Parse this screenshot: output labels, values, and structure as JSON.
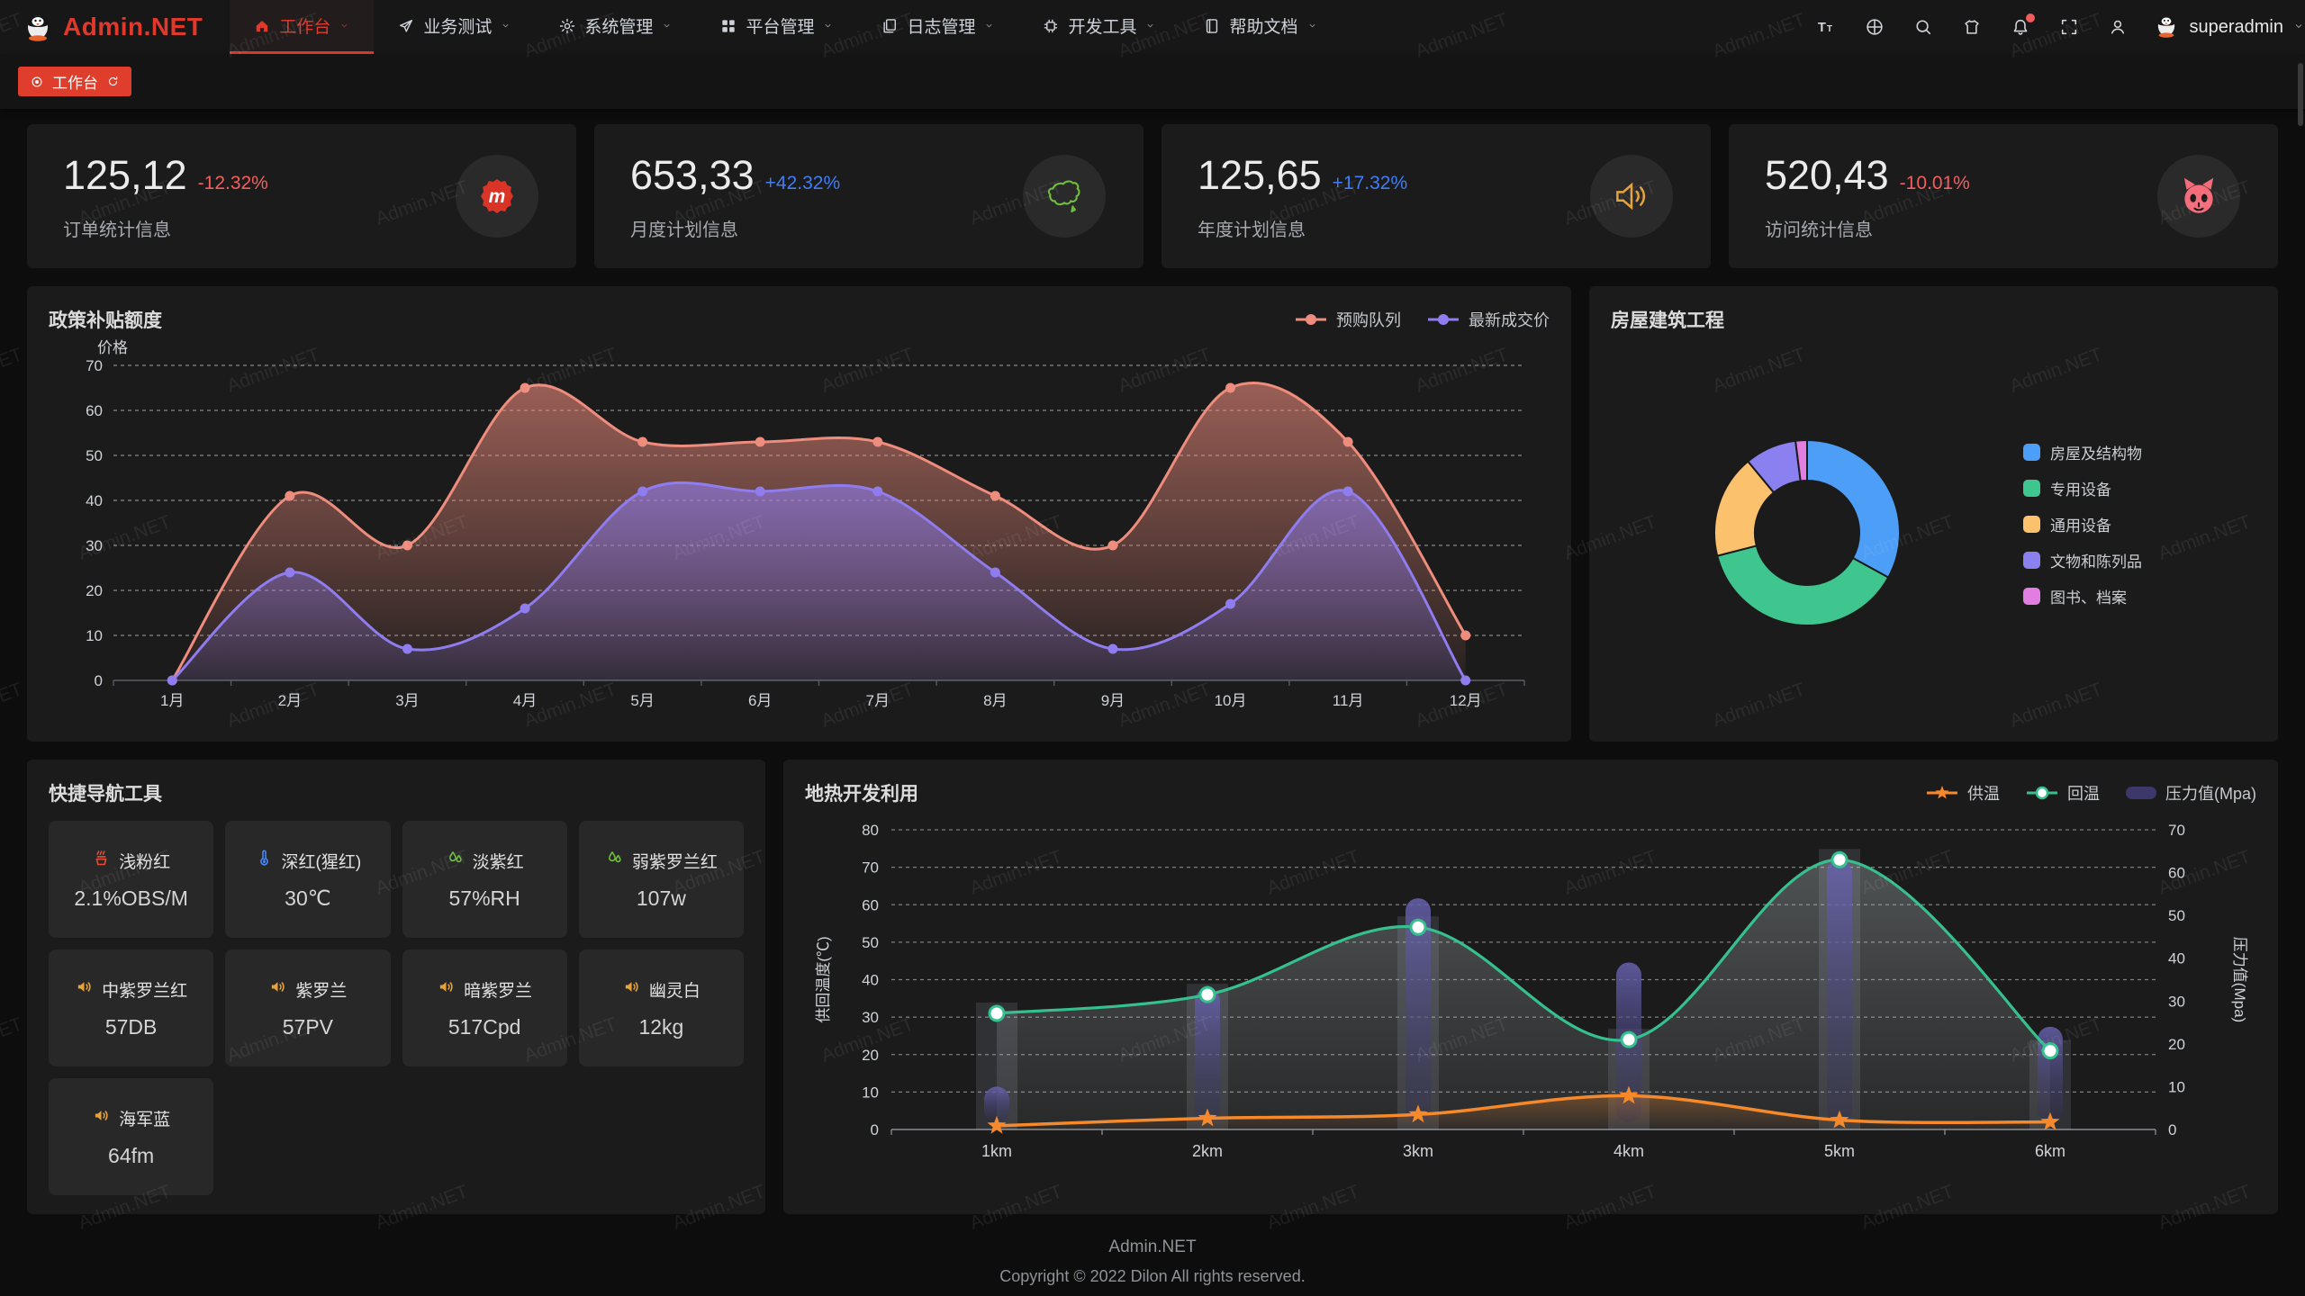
{
  "header": {
    "logo_text": "Admin.NET",
    "nav": [
      {
        "key": "workbench",
        "label": "工作台",
        "icon": "home",
        "active": true
      },
      {
        "key": "business-test",
        "label": "业务测试",
        "icon": "send",
        "active": false
      },
      {
        "key": "system-mgmt",
        "label": "系统管理",
        "icon": "gear",
        "active": false
      },
      {
        "key": "platform-mgmt",
        "label": "平台管理",
        "icon": "grid",
        "active": false
      },
      {
        "key": "log-mgmt",
        "label": "日志管理",
        "icon": "doc",
        "active": false
      },
      {
        "key": "dev-tools",
        "label": "开发工具",
        "icon": "chip",
        "active": false
      },
      {
        "key": "help-docs",
        "label": "帮助文档",
        "icon": "book",
        "active": false
      }
    ],
    "actions": [
      {
        "key": "font-size",
        "icon": "fontsize",
        "badge": false
      },
      {
        "key": "language",
        "icon": "lang",
        "badge": false
      },
      {
        "key": "search",
        "icon": "search",
        "badge": false
      },
      {
        "key": "theme-skin",
        "icon": "theme",
        "badge": false
      },
      {
        "key": "notifications",
        "icon": "bell",
        "badge": true
      },
      {
        "key": "fullscreen",
        "icon": "fullscreen",
        "badge": false
      },
      {
        "key": "profile",
        "icon": "user",
        "badge": false
      }
    ],
    "username": "superadmin"
  },
  "tabbar": {
    "active_tab": "工作台"
  },
  "stats": [
    {
      "value": "125,12",
      "delta": "-12.32%",
      "trend": "down",
      "label": "订单统计信息",
      "icon": "meetup"
    },
    {
      "value": "653,33",
      "delta": "+42.32%",
      "trend": "up",
      "label": "月度计划信息",
      "icon": "china"
    },
    {
      "value": "125,65",
      "delta": "+17.32%",
      "trend": "up",
      "label": "年度计划信息",
      "icon": "speaker"
    },
    {
      "value": "520,43",
      "delta": "-10.01%",
      "trend": "down",
      "label": "访问统计信息",
      "icon": "cat"
    }
  ],
  "quick_nav": {
    "title": "快捷导航工具",
    "items": [
      {
        "icon": "heat",
        "icon_color": "#e34d3b",
        "name": "浅粉红",
        "value": "2.1%OBS/M"
      },
      {
        "icon": "thermometer",
        "icon_color": "#4a8af4",
        "name": "深红(猩红)",
        "value": "30℃"
      },
      {
        "icon": "droplets",
        "icon_color": "#6fbf3e",
        "name": "淡紫红",
        "value": "57%RH"
      },
      {
        "icon": "droplets",
        "icon_color": "#6fbf3e",
        "name": "弱紫罗兰红",
        "value": "107w"
      },
      {
        "icon": "speaker",
        "icon_color": "#e6a23c",
        "name": "中紫罗兰红",
        "value": "57DB"
      },
      {
        "icon": "speaker",
        "icon_color": "#e6a23c",
        "name": "紫罗兰",
        "value": "57PV"
      },
      {
        "icon": "speaker",
        "icon_color": "#e6a23c",
        "name": "暗紫罗兰",
        "value": "517Cpd"
      },
      {
        "icon": "speaker",
        "icon_color": "#e6a23c",
        "name": "幽灵白",
        "value": "12kg"
      },
      {
        "icon": "speaker",
        "icon_color": "#e6a23c",
        "name": "海军蓝",
        "value": "64fm"
      }
    ]
  },
  "footer": {
    "line1": "Admin.NET",
    "line2": "Copyright © 2022 Dilon All rights reserved."
  },
  "watermark": {
    "text": "Admin.NET"
  },
  "colors": {
    "accent": "#e0392b",
    "up": "#3f7ef7",
    "down": "#f25e5e"
  },
  "chart_data": [
    {
      "id": "subsidy",
      "type": "area",
      "title": "政策补贴额度",
      "y_name": "价格",
      "ylim": [
        0,
        70
      ],
      "y_ticks": [
        0,
        10,
        20,
        30,
        40,
        50,
        60,
        70
      ],
      "categories": [
        "1月",
        "2月",
        "3月",
        "4月",
        "5月",
        "6月",
        "7月",
        "8月",
        "9月",
        "10月",
        "11月",
        "12月"
      ],
      "series": [
        {
          "name": "预购队列",
          "color": "#ee8c7d",
          "values": [
            0,
            41,
            30,
            65,
            53,
            53,
            53,
            41,
            30,
            65,
            53,
            10
          ]
        },
        {
          "name": "最新成交价",
          "color": "#8f7df0",
          "values": [
            0,
            24,
            7,
            16,
            42,
            42,
            42,
            24,
            7,
            17,
            42,
            0
          ]
        }
      ],
      "legend_position": "top-right",
      "grid": true
    },
    {
      "id": "building",
      "type": "pie",
      "title": "房屋建筑工程",
      "slices": [
        {
          "label": "房屋及结构物",
          "value": 33,
          "color": "#4d9ef7"
        },
        {
          "label": "专用设备",
          "value": 38,
          "color": "#3fc58e"
        },
        {
          "label": "通用设备",
          "value": 18,
          "color": "#fbc16d"
        },
        {
          "label": "文物和陈列品",
          "value": 9,
          "color": "#8b80f0"
        },
        {
          "label": "图书、档案",
          "value": 2,
          "color": "#e27ee2"
        }
      ],
      "legend_position": "right"
    },
    {
      "id": "geothermal",
      "type": "mixed",
      "title": "地热开发利用",
      "categories": [
        "1km",
        "2km",
        "3km",
        "4km",
        "5km",
        "6km"
      ],
      "left_axis": {
        "name": "供回温度(℃)",
        "min": 0,
        "max": 80,
        "ticks": [
          0,
          10,
          20,
          30,
          40,
          50,
          60,
          70,
          80
        ]
      },
      "right_axis": {
        "name": "压力值(Mpa)",
        "min": 0,
        "max": 70,
        "ticks": [
          0,
          10,
          20,
          30,
          40,
          50,
          60,
          70
        ]
      },
      "series": [
        {
          "name": "供温",
          "type": "line",
          "marker": "star",
          "axis": "left",
          "color": "#f5892b",
          "values": [
            1,
            3,
            4,
            9,
            2.5,
            2
          ]
        },
        {
          "name": "回温",
          "type": "line",
          "marker": "circle",
          "axis": "left",
          "color": "#35c08e",
          "values": [
            31,
            36,
            54,
            24,
            72,
            21
          ]
        },
        {
          "name": "压力值(Mpa)",
          "type": "bar",
          "axis": "right",
          "color": "#3c3869",
          "values": [
            10,
            33,
            54,
            39,
            63,
            24
          ]
        }
      ],
      "legend_position": "top-right",
      "grid": true
    }
  ]
}
